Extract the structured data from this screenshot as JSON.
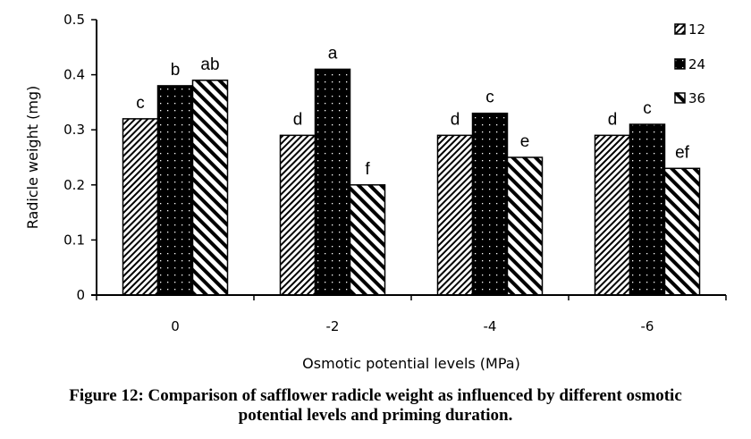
{
  "chart_data": {
    "type": "bar",
    "title": "",
    "xlabel": "Osmotic potential levels (MPa)",
    "ylabel": "Radicle weight (mg)",
    "categories": [
      "0",
      "-2",
      "-4",
      "-6"
    ],
    "ylim": [
      0,
      0.5
    ],
    "yticks": [
      "0",
      "0.1",
      "0.2",
      "0.3",
      "0.4",
      "0.5"
    ],
    "ytick_values": [
      0,
      0.1,
      0.2,
      0.3,
      0.4,
      0.5
    ],
    "grid": false,
    "legend_position": "top-right",
    "series": [
      {
        "name": "12",
        "pattern": "fine-diagonal-hatch",
        "values": [
          0.32,
          0.29,
          0.29,
          0.29
        ],
        "labels": [
          "c",
          "d",
          "d",
          "d"
        ]
      },
      {
        "name": "24",
        "pattern": "black-dotted",
        "values": [
          0.38,
          0.41,
          0.33,
          0.31
        ],
        "labels": [
          "b",
          "a",
          "c",
          "c"
        ]
      },
      {
        "name": "36",
        "pattern": "wide-back-diagonal-hatch",
        "values": [
          0.39,
          0.2,
          0.25,
          0.23
        ],
        "labels": [
          "ab",
          "f",
          "e",
          "ef"
        ]
      }
    ]
  },
  "caption": {
    "line1": "Figure 12: Comparison of safflower radicle weight as influenced by different osmotic",
    "line2": "potential levels and priming duration."
  }
}
